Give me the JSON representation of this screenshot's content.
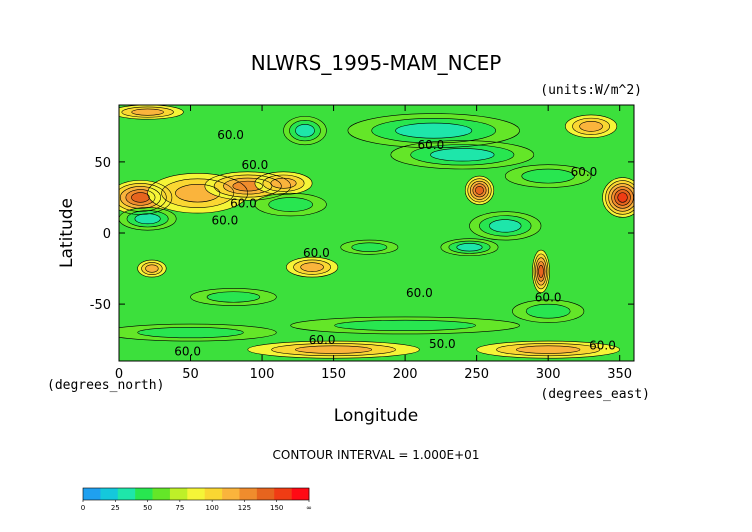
{
  "chart_data": {
    "type": "heatmap",
    "title": "NLWRS_1995-MAM_NCEP",
    "units_label": "(units:W/m^2)",
    "xlabel": "Longitude",
    "ylabel": "Latitude",
    "x_units_label": "(degrees_east)",
    "y_units_label": "(degrees_north)",
    "xlim": [
      0,
      360
    ],
    "ylim": [
      -90,
      90
    ],
    "x_ticks": [
      0,
      50,
      100,
      150,
      200,
      250,
      300,
      350
    ],
    "y_ticks": [
      -50,
      0,
      50
    ],
    "contour_interval_label": "CONTOUR INTERVAL = 1.000E+01",
    "contour_labels": [
      {
        "text": "60.0",
        "x": 78,
        "y": 66
      },
      {
        "text": "60.0",
        "x": 95,
        "y": 45
      },
      {
        "text": "60.0",
        "x": 87,
        "y": 18
      },
      {
        "text": "60.0",
        "x": 74,
        "y": 6
      },
      {
        "text": "60.0",
        "x": 218,
        "y": 59
      },
      {
        "text": "60.0",
        "x": 325,
        "y": 40
      },
      {
        "text": "60.0",
        "x": 138,
        "y": -17
      },
      {
        "text": "60.0",
        "x": 210,
        "y": -45
      },
      {
        "text": "60.0",
        "x": 300,
        "y": -48
      },
      {
        "text": "60.0",
        "x": 142,
        "y": -78
      },
      {
        "text": "50.0",
        "x": 226,
        "y": -81
      },
      {
        "text": "60.0",
        "x": 48,
        "y": -86
      },
      {
        "text": "60.0",
        "x": 338,
        "y": -82
      }
    ],
    "legend": {
      "levels": [
        "0",
        "25",
        "50",
        "75",
        "100",
        "125",
        "150",
        "∞"
      ],
      "colors": [
        "#1fa0f0",
        "#14c8dc",
        "#1ee6aa",
        "#28e650",
        "#64e628",
        "#bef028",
        "#f5f537",
        "#fad732",
        "#fab43c",
        "#f08c2d",
        "#e6641e",
        "#f03c14",
        "#ff0a14"
      ]
    },
    "field": {
      "background": "#3ce03c",
      "regions": [
        {
          "lon": 15,
          "lat": 25,
          "rx": 22,
          "ry": 12,
          "value": 130
        },
        {
          "lon": 55,
          "lat": 28,
          "rx": 35,
          "ry": 14,
          "value": 100
        },
        {
          "lon": 90,
          "lat": 33,
          "rx": 30,
          "ry": 10,
          "value": 110
        },
        {
          "lon": 115,
          "lat": 35,
          "rx": 20,
          "ry": 8,
          "value": 95
        },
        {
          "lon": 252,
          "lat": 30,
          "rx": 10,
          "ry": 10,
          "value": 130
        },
        {
          "lon": 352,
          "lat": 25,
          "rx": 14,
          "ry": 14,
          "value": 140
        },
        {
          "lon": 330,
          "lat": 75,
          "rx": 18,
          "ry": 8,
          "value": 100
        },
        {
          "lon": 295,
          "lat": -27,
          "rx": 6,
          "ry": 15,
          "value": 120
        },
        {
          "lon": 135,
          "lat": -24,
          "rx": 18,
          "ry": 7,
          "value": 100
        },
        {
          "lon": 23,
          "lat": -25,
          "rx": 10,
          "ry": 6,
          "value": 95
        },
        {
          "lon": 130,
          "lat": 72,
          "rx": 15,
          "ry": 10,
          "value": 20
        },
        {
          "lon": 220,
          "lat": 72,
          "rx": 60,
          "ry": 12,
          "value": 25
        },
        {
          "lon": 240,
          "lat": 55,
          "rx": 50,
          "ry": 10,
          "value": 30
        },
        {
          "lon": 300,
          "lat": 40,
          "rx": 30,
          "ry": 8,
          "value": 35
        },
        {
          "lon": 20,
          "lat": 10,
          "rx": 20,
          "ry": 8,
          "value": 30
        },
        {
          "lon": 120,
          "lat": 20,
          "rx": 25,
          "ry": 8,
          "value": 35
        },
        {
          "lon": 270,
          "lat": 5,
          "rx": 25,
          "ry": 10,
          "value": 30
        },
        {
          "lon": 245,
          "lat": -10,
          "rx": 20,
          "ry": 6,
          "value": 30
        },
        {
          "lon": 175,
          "lat": -10,
          "rx": 20,
          "ry": 5,
          "value": 35
        },
        {
          "lon": 300,
          "lat": -55,
          "rx": 25,
          "ry": 8,
          "value": 35
        },
        {
          "lon": 80,
          "lat": -45,
          "rx": 30,
          "ry": 6,
          "value": 40
        },
        {
          "lon": 50,
          "lat": -70,
          "rx": 60,
          "ry": 6,
          "value": 35
        },
        {
          "lon": 200,
          "lat": -65,
          "rx": 80,
          "ry": 6,
          "value": 40
        },
        {
          "lon": 150,
          "lat": -82,
          "rx": 60,
          "ry": 6,
          "value": 100
        },
        {
          "lon": 300,
          "lat": -82,
          "rx": 50,
          "ry": 6,
          "value": 95
        },
        {
          "lon": 20,
          "lat": 85,
          "rx": 25,
          "ry": 5,
          "value": 100
        }
      ]
    }
  }
}
